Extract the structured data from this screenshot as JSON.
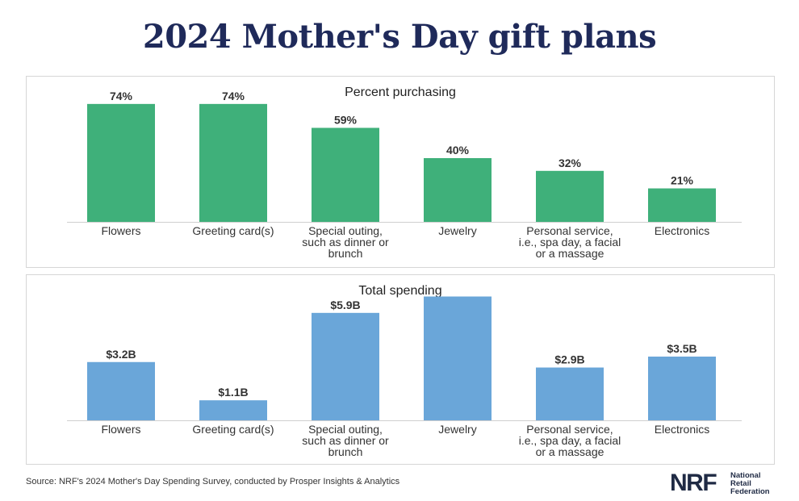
{
  "title": "2024 Mother's Day gift plans",
  "source": "Source: NRF's 2024 Mother's Day Spending Survey, conducted by Prosper Insights & Analytics",
  "logo": {
    "mark": "NRF",
    "line1": "National",
    "line2": "Retail",
    "line3": "Federation"
  },
  "colors": {
    "green": "#3fb07a",
    "blue": "#6aa6d9",
    "title": "#1f2a5a"
  },
  "chart_data": [
    {
      "type": "bar",
      "title": "Percent purchasing",
      "categories": [
        [
          "Flowers"
        ],
        [
          "Greeting card(s)"
        ],
        [
          "Special outing,",
          "such as dinner or",
          "brunch"
        ],
        [
          "Jewelry"
        ],
        [
          "Personal service,",
          "i.e., spa day, a facial",
          "or a massage"
        ],
        [
          "Electronics"
        ]
      ],
      "values": [
        74,
        74,
        59,
        40,
        32,
        21
      ],
      "labels": [
        "74%",
        "74%",
        "59%",
        "40%",
        "32%",
        "21%"
      ],
      "unit": "%",
      "ylim": [
        0,
        80
      ],
      "color": "#3fb07a"
    },
    {
      "type": "bar",
      "title": "Total spending",
      "categories": [
        [
          "Flowers"
        ],
        [
          "Greeting card(s)"
        ],
        [
          "Special outing,",
          "such as dinner or",
          "brunch"
        ],
        [
          "Jewelry"
        ],
        [
          "Personal service,",
          "i.e., spa day, a facial",
          "or a massage"
        ],
        [
          "Electronics"
        ]
      ],
      "values": [
        3.2,
        1.1,
        5.9,
        6.8,
        2.9,
        3.5
      ],
      "labels": [
        "$3.2B",
        "$1.1B",
        "$5.9B",
        "",
        "$2.9B",
        "$3.5B"
      ],
      "unit": "B USD",
      "ylim": [
        0,
        7
      ],
      "color": "#6aa6d9"
    }
  ]
}
